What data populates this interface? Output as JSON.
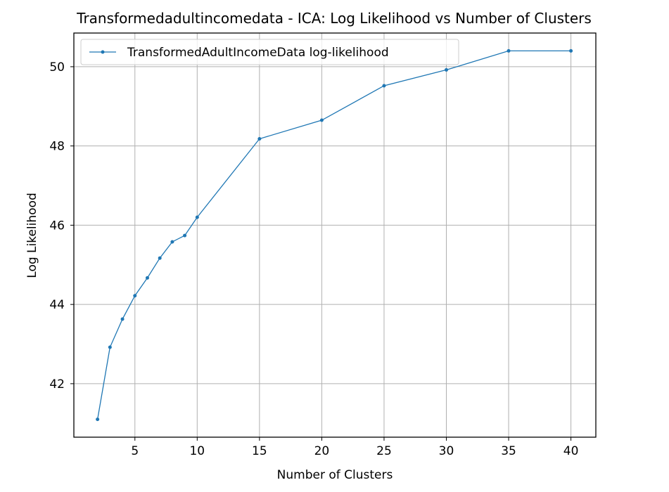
{
  "chart_data": {
    "type": "line",
    "title": "Transformedadultincomedata - ICA: Log Likelihood vs Number of Clusters",
    "xlabel": "Number of Clusters",
    "ylabel": "Log Likelihood",
    "xlim": [
      0.1,
      42.0
    ],
    "ylim": [
      40.65,
      50.85
    ],
    "xticks": [
      5,
      10,
      15,
      20,
      25,
      30,
      35,
      40
    ],
    "yticks": [
      42,
      44,
      46,
      48,
      50
    ],
    "grid": true,
    "legend_position": "upper-left",
    "series": [
      {
        "name": "TransformedAdultIncomeData log-likelihood",
        "color": "#1f77b4",
        "marker": "point",
        "x": [
          2,
          3,
          4,
          5,
          6,
          7,
          8,
          9,
          10,
          15,
          20,
          25,
          30,
          35,
          40
        ],
        "y": [
          41.1,
          42.92,
          43.63,
          44.22,
          44.67,
          45.17,
          45.58,
          45.74,
          46.2,
          48.18,
          48.65,
          49.52,
          49.92,
          50.4,
          50.4
        ]
      }
    ]
  }
}
